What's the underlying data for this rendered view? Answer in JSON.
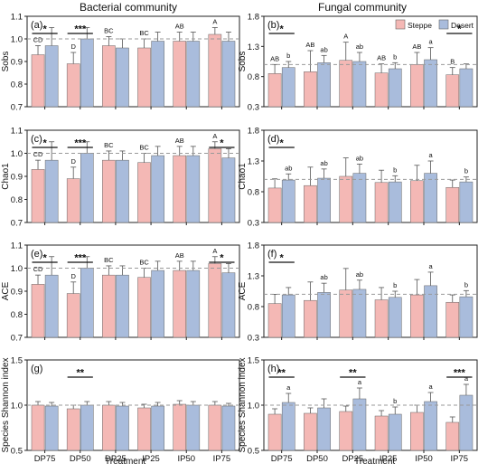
{
  "figure": {
    "column_titles": [
      "Bacterial community",
      "Fungal community"
    ],
    "xlabel": "Treatment",
    "legend": {
      "steppe_label": "Steppe",
      "desert_label": "Desert"
    }
  },
  "colors": {
    "steppe": "#F4B8B5",
    "desert": "#A9BCDC",
    "edge": "#666666",
    "refline": "#999999"
  },
  "chart_data": [
    {
      "panel": "(a)",
      "type": "bar",
      "ylabel": "Sobs",
      "ylim": [
        0.7,
        1.1
      ],
      "yticks": [
        0.7,
        0.8,
        0.9,
        1.0,
        1.1
      ],
      "categories": [
        "DP75",
        "DP50",
        "DP25",
        "IP25",
        "IP50",
        "IP75"
      ],
      "series": [
        {
          "name": "Steppe",
          "values": [
            0.93,
            0.89,
            0.97,
            0.96,
            0.99,
            1.02
          ],
          "errors": [
            0.04,
            0.05,
            0.04,
            0.04,
            0.04,
            0.03
          ]
        },
        {
          "name": "Desert",
          "values": [
            0.97,
            1.0,
            0.96,
            0.99,
            0.99,
            0.99
          ],
          "errors": [
            0.08,
            0.05,
            0.04,
            0.04,
            0.04,
            0.04
          ]
        }
      ],
      "steppe_letters": [
        "CD",
        "D",
        "BC",
        "BC",
        "AB",
        "A"
      ],
      "desert_letters": [
        "",
        "",
        "",
        "",
        "",
        ""
      ],
      "significance": [
        {
          "index": 0,
          "label": "*"
        },
        {
          "index": 1,
          "label": "***"
        }
      ],
      "reference_line": 1.0,
      "grid": false
    },
    {
      "panel": "(b)",
      "type": "bar",
      "ylabel": "Sobs",
      "ylim": [
        0.3,
        1.8
      ],
      "yticks": [
        0.3,
        0.8,
        1.3,
        1.8
      ],
      "categories": [
        "DP75",
        "DP50",
        "DP25",
        "IP25",
        "IP50",
        "IP75"
      ],
      "series": [
        {
          "name": "Steppe",
          "values": [
            0.85,
            0.88,
            1.07,
            0.86,
            1.0,
            0.83
          ],
          "errors": [
            0.15,
            0.35,
            0.3,
            0.15,
            0.2,
            0.12
          ]
        },
        {
          "name": "Desert",
          "values": [
            0.95,
            1.03,
            1.05,
            0.93,
            1.08,
            0.93
          ],
          "errors": [
            0.1,
            0.12,
            0.15,
            0.1,
            0.2,
            0.08
          ]
        }
      ],
      "steppe_letters": [
        "AB",
        "AB",
        "A",
        "AB",
        "AB",
        "B"
      ],
      "desert_letters": [
        "b",
        "ab",
        "ab",
        "b",
        "a",
        ""
      ],
      "significance": [
        {
          "index": 0,
          "label": "*"
        },
        {
          "index": 5,
          "label": "*"
        }
      ],
      "reference_line": 1.0,
      "grid": false,
      "legend": "top-right"
    },
    {
      "panel": "(c)",
      "type": "bar",
      "ylabel": "Chao1",
      "ylim": [
        0.7,
        1.1
      ],
      "yticks": [
        0.7,
        0.8,
        0.9,
        1.0,
        1.1
      ],
      "categories": [
        "DP75",
        "DP50",
        "DP25",
        "IP25",
        "IP50",
        "IP75"
      ],
      "series": [
        {
          "name": "Steppe",
          "values": [
            0.93,
            0.89,
            0.97,
            0.96,
            0.99,
            1.02
          ],
          "errors": [
            0.04,
            0.05,
            0.04,
            0.04,
            0.04,
            0.03
          ]
        },
        {
          "name": "Desert",
          "values": [
            0.97,
            1.0,
            0.97,
            0.99,
            0.99,
            0.98
          ],
          "errors": [
            0.08,
            0.05,
            0.04,
            0.04,
            0.04,
            0.04
          ]
        }
      ],
      "steppe_letters": [
        "CD",
        "D",
        "BC",
        "BC",
        "AB",
        "A"
      ],
      "desert_letters": [
        "",
        "",
        "",
        "",
        "",
        ""
      ],
      "significance": [
        {
          "index": 0,
          "label": "*"
        },
        {
          "index": 1,
          "label": "***"
        },
        {
          "index": 5,
          "label": "*"
        }
      ],
      "reference_line": 1.0,
      "grid": false
    },
    {
      "panel": "(d)",
      "type": "bar",
      "ylabel": "Chao1",
      "ylim": [
        0.3,
        1.8
      ],
      "yticks": [
        0.3,
        0.8,
        1.3,
        1.8
      ],
      "categories": [
        "DP75",
        "DP50",
        "DP25",
        "IP25",
        "IP50",
        "IP75"
      ],
      "series": [
        {
          "name": "Steppe",
          "values": [
            0.86,
            0.9,
            1.05,
            0.95,
            0.98,
            0.87
          ],
          "errors": [
            0.15,
            0.3,
            0.3,
            0.2,
            0.25,
            0.12
          ]
        },
        {
          "name": "Desert",
          "values": [
            0.99,
            1.02,
            1.1,
            0.96,
            1.1,
            0.96
          ],
          "errors": [
            0.1,
            0.15,
            0.15,
            0.1,
            0.2,
            0.08
          ]
        }
      ],
      "steppe_letters": [
        "",
        "",
        "",
        "",
        "",
        ""
      ],
      "desert_letters": [
        "ab",
        "ab",
        "ab",
        "b",
        "a",
        "b"
      ],
      "significance": [
        {
          "index": 0,
          "label": "*"
        }
      ],
      "reference_line": 1.0,
      "grid": false
    },
    {
      "panel": "(e)",
      "type": "bar",
      "ylabel": "ACE",
      "ylim": [
        0.7,
        1.1
      ],
      "yticks": [
        0.7,
        0.8,
        0.9,
        1.0,
        1.1
      ],
      "categories": [
        "DP75",
        "DP50",
        "DP25",
        "IP25",
        "IP50",
        "IP75"
      ],
      "series": [
        {
          "name": "Steppe",
          "values": [
            0.93,
            0.89,
            0.97,
            0.96,
            0.99,
            1.02
          ],
          "errors": [
            0.04,
            0.05,
            0.04,
            0.04,
            0.04,
            0.03
          ]
        },
        {
          "name": "Desert",
          "values": [
            0.97,
            1.0,
            0.97,
            0.99,
            0.99,
            0.98
          ],
          "errors": [
            0.08,
            0.05,
            0.04,
            0.04,
            0.04,
            0.04
          ]
        }
      ],
      "steppe_letters": [
        "CD",
        "D",
        "BC",
        "BC",
        "AB",
        "A"
      ],
      "desert_letters": [
        "",
        "",
        "",
        "",
        "",
        ""
      ],
      "significance": [
        {
          "index": 0,
          "label": "*"
        },
        {
          "index": 1,
          "label": "***"
        },
        {
          "index": 5,
          "label": "*"
        }
      ],
      "reference_line": 1.0,
      "grid": false
    },
    {
      "panel": "(f)",
      "type": "bar",
      "ylabel": "ACE",
      "ylim": [
        0.3,
        1.8
      ],
      "yticks": [
        0.3,
        0.8,
        1.3,
        1.8
      ],
      "categories": [
        "DP75",
        "DP50",
        "DP25",
        "IP25",
        "IP50",
        "IP75"
      ],
      "series": [
        {
          "name": "Steppe",
          "values": [
            0.85,
            0.9,
            1.07,
            0.91,
            0.99,
            0.87
          ],
          "errors": [
            0.15,
            0.3,
            0.35,
            0.2,
            0.25,
            0.12
          ]
        },
        {
          "name": "Desert",
          "values": [
            0.99,
            1.03,
            1.08,
            0.95,
            1.14,
            0.96
          ],
          "errors": [
            0.12,
            0.15,
            0.15,
            0.1,
            0.22,
            0.1
          ]
        }
      ],
      "steppe_letters": [
        "",
        "",
        "",
        "",
        "",
        ""
      ],
      "desert_letters": [
        "",
        "ab",
        "ab",
        "b",
        "a",
        "b"
      ],
      "significance": [
        {
          "index": 0,
          "label": "*"
        }
      ],
      "reference_line": 1.0,
      "grid": false
    },
    {
      "panel": "(g)",
      "type": "bar",
      "ylabel": "Species Shannon index",
      "ylim": [
        0.5,
        1.5
      ],
      "yticks": [
        0.5,
        1.0,
        1.5
      ],
      "categories": [
        "DP75",
        "DP50",
        "DP25",
        "IP25",
        "IP50",
        "IP75"
      ],
      "series": [
        {
          "name": "Steppe",
          "values": [
            1.0,
            0.96,
            1.0,
            0.97,
            1.01,
            1.0
          ],
          "errors": [
            0.04,
            0.04,
            0.04,
            0.04,
            0.04,
            0.04
          ]
        },
        {
          "name": "Desert",
          "values": [
            0.99,
            1.0,
            0.99,
            0.99,
            1.0,
            0.99
          ],
          "errors": [
            0.04,
            0.04,
            0.04,
            0.04,
            0.04,
            0.03
          ]
        }
      ],
      "steppe_letters": [
        "",
        "",
        "",
        "",
        "",
        ""
      ],
      "desert_letters": [
        "",
        "",
        "",
        "",
        "",
        ""
      ],
      "significance": [
        {
          "index": 1,
          "label": "**"
        }
      ],
      "reference_line": 1.0,
      "grid": false
    },
    {
      "panel": "(h)",
      "type": "bar",
      "ylabel": "Species Shannon index",
      "ylim": [
        0.5,
        1.5
      ],
      "yticks": [
        0.5,
        1.0,
        1.5
      ],
      "categories": [
        "DP75",
        "DP50",
        "DP25",
        "IP25",
        "IP50",
        "IP75"
      ],
      "series": [
        {
          "name": "Steppe",
          "values": [
            0.9,
            0.91,
            0.93,
            0.88,
            0.92,
            0.81
          ],
          "errors": [
            0.06,
            0.06,
            0.06,
            0.06,
            0.08,
            0.06
          ]
        },
        {
          "name": "Desert",
          "values": [
            1.03,
            0.97,
            1.07,
            0.9,
            1.04,
            1.11
          ],
          "errors": [
            0.1,
            0.1,
            0.12,
            0.08,
            0.1,
            0.12
          ]
        }
      ],
      "steppe_letters": [
        "",
        "",
        "",
        "",
        "",
        ""
      ],
      "desert_letters": [
        "a",
        "",
        "a",
        "b",
        "a",
        "a"
      ],
      "significance": [
        {
          "index": 0,
          "label": "**"
        },
        {
          "index": 2,
          "label": "**"
        },
        {
          "index": 5,
          "label": "***"
        }
      ],
      "reference_line": 1.0,
      "grid": false
    }
  ]
}
